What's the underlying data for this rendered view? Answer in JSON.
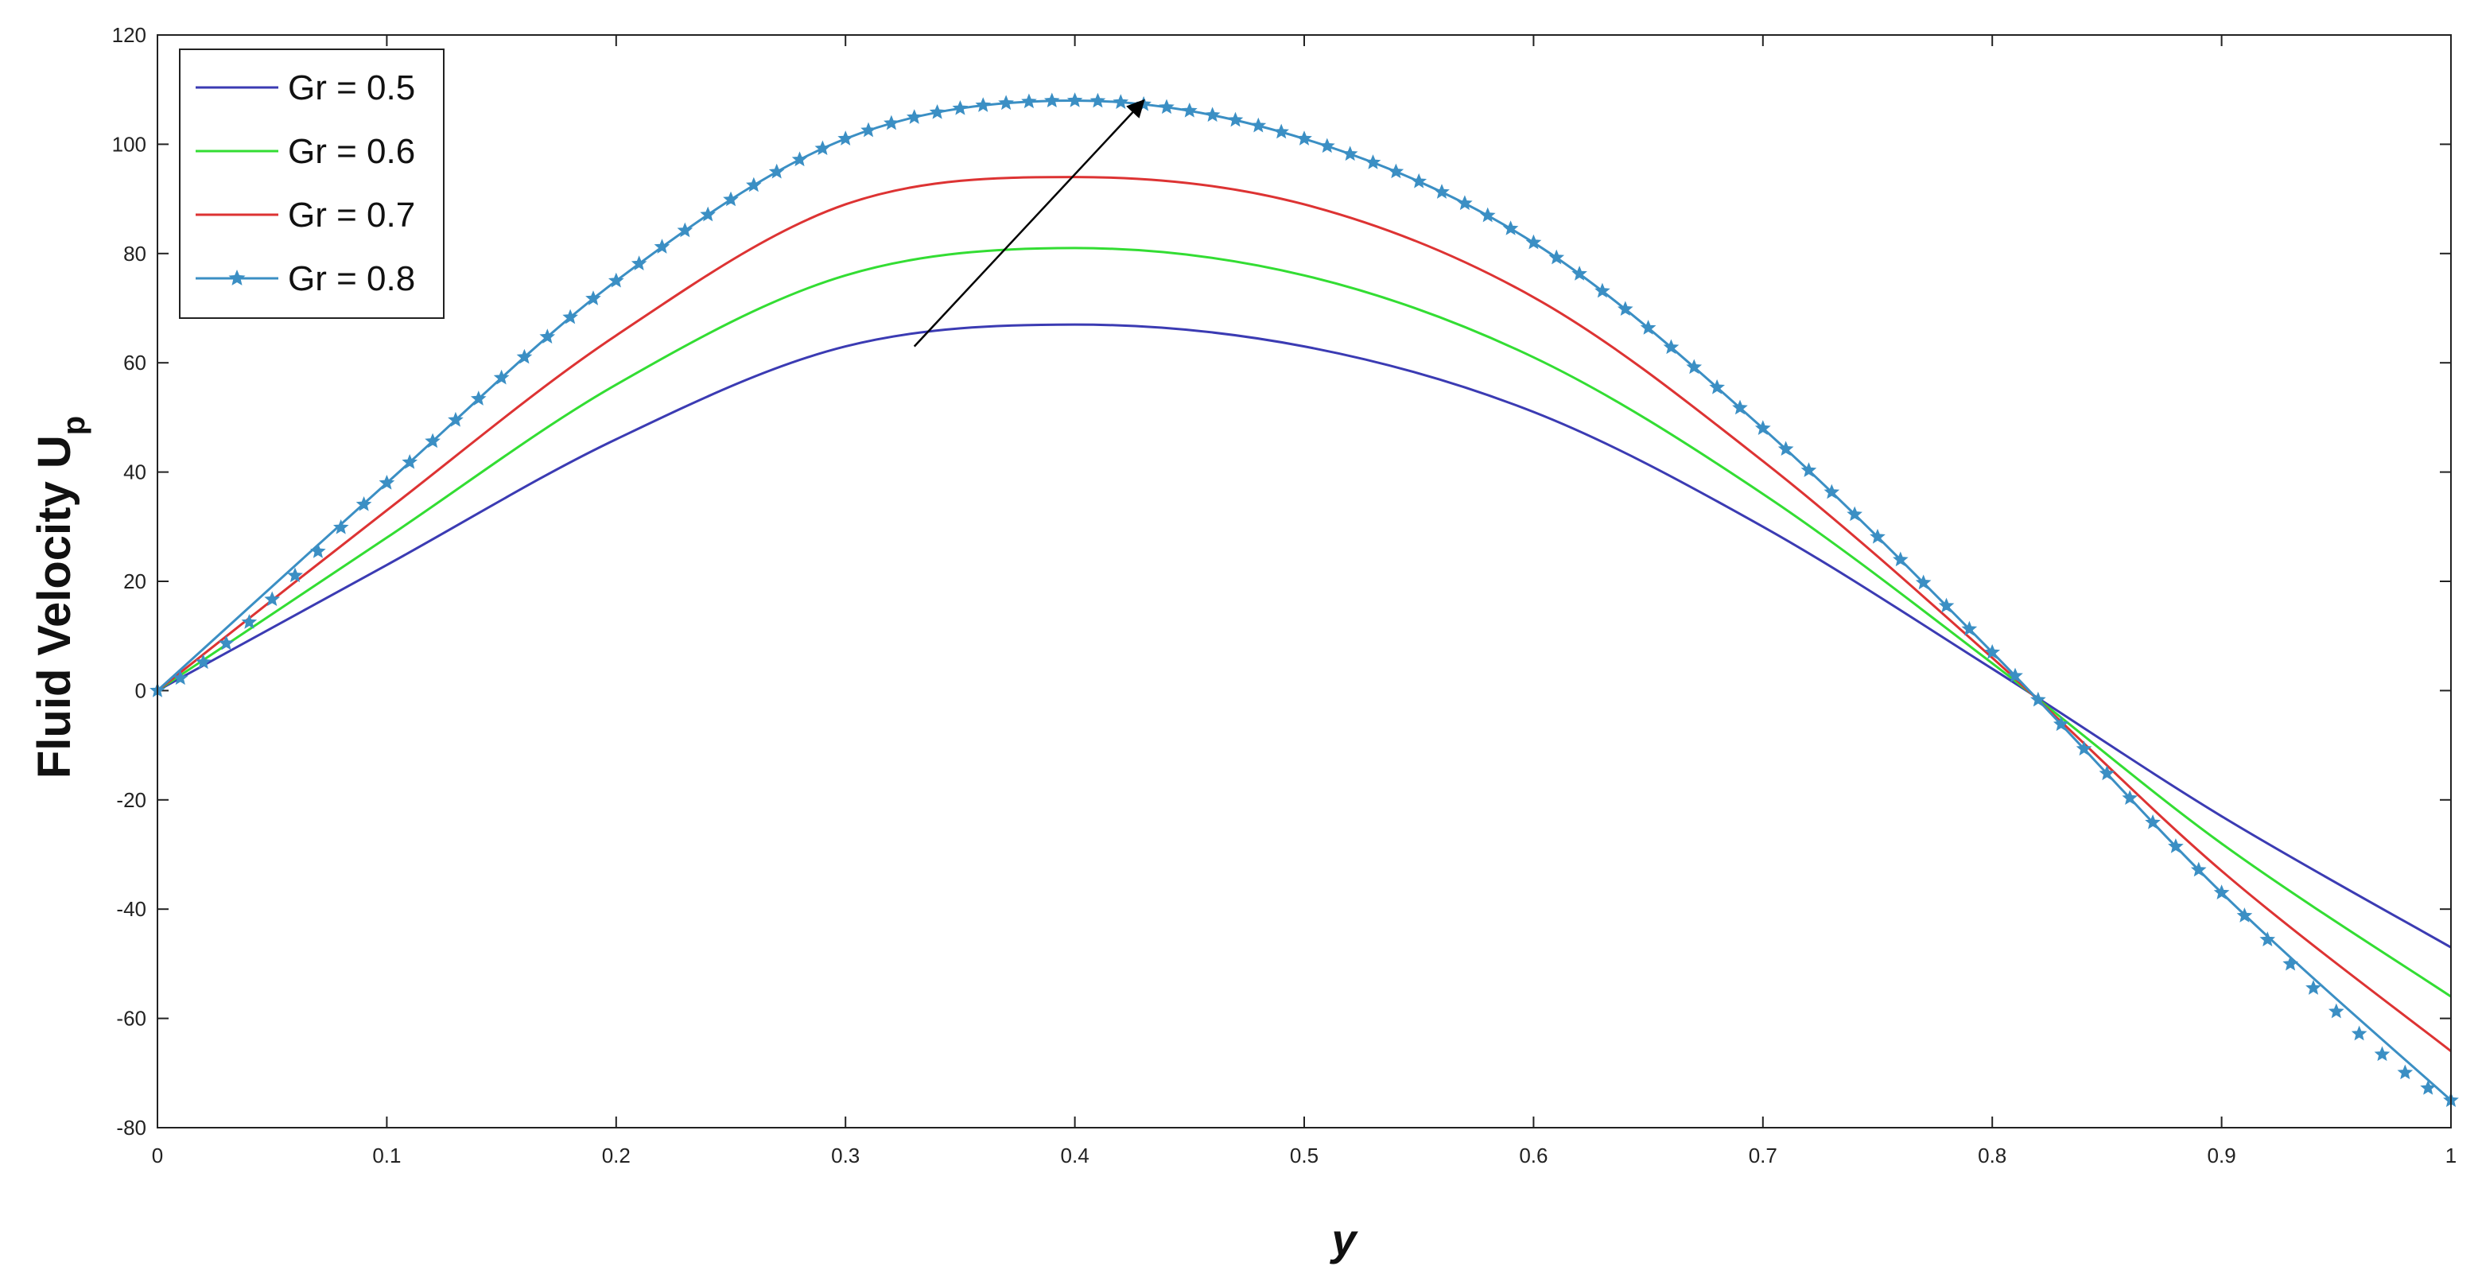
{
  "chart_data": {
    "type": "line",
    "xlabel": "y",
    "ylabel": "Fluid Velocity U",
    "ylabel_subscript": "p",
    "xlim": [
      0,
      1
    ],
    "ylim": [
      -80,
      120
    ],
    "xticks": [
      0,
      0.1,
      0.2,
      0.3,
      0.4,
      0.5,
      0.6,
      0.7,
      0.8,
      0.9,
      1
    ],
    "yticks": [
      -80,
      -60,
      -40,
      -20,
      0,
      20,
      40,
      60,
      80,
      100,
      120
    ],
    "xtick_labels": [
      "0",
      "0.1",
      "0.2",
      "0.3",
      "0.4",
      "0.5",
      "0.6",
      "0.7",
      "0.8",
      "0.9",
      "1"
    ],
    "ytick_labels": [
      "-80",
      "-60",
      "-40",
      "-20",
      "0",
      "20",
      "40",
      "60",
      "80",
      "100",
      "120"
    ],
    "grid": false,
    "legend_position": "top-left",
    "x": [
      0,
      0.1,
      0.2,
      0.3,
      0.4,
      0.5,
      0.6,
      0.7,
      0.8,
      0.9,
      1.0
    ],
    "series": [
      {
        "name": "Gr = 0.5",
        "color": "#3b3bb3",
        "marker": "none",
        "values": [
          0,
          23,
          46,
          63,
          67,
          63,
          51,
          30,
          4,
          -23,
          -47
        ]
      },
      {
        "name": "Gr = 0.6",
        "color": "#33dd33",
        "marker": "none",
        "values": [
          0,
          28,
          56,
          76,
          81,
          76,
          61,
          36,
          5,
          -28,
          -56
        ]
      },
      {
        "name": "Gr = 0.7",
        "color": "#dd3333",
        "marker": "none",
        "values": [
          0,
          33,
          65,
          89,
          94,
          89,
          72,
          42,
          6,
          -33,
          -66
        ]
      },
      {
        "name": "Gr = 0.8",
        "color": "#3b8fc4",
        "marker": "star",
        "values": [
          0,
          38,
          75,
          101,
          108,
          101,
          82,
          48,
          7,
          -37,
          -75
        ]
      }
    ],
    "annotations": [
      {
        "type": "arrow",
        "from": [
          0.33,
          63
        ],
        "to": [
          0.43,
          108
        ]
      }
    ]
  }
}
